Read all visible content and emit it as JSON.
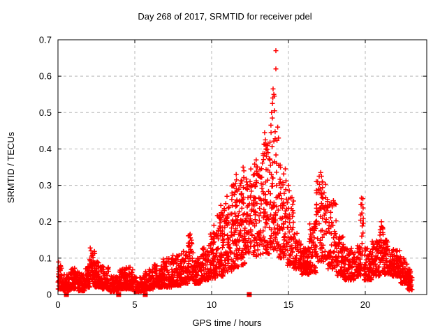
{
  "chart_data": {
    "type": "scatter",
    "title": "Day 268 of 2017, SRMTID for receiver pdel",
    "xlabel": "GPS time / hours",
    "ylabel": "SRMTID / TECUs",
    "xlim": [
      0,
      24
    ],
    "ylim": [
      0,
      0.7
    ],
    "x_ticks": [
      0,
      5,
      10,
      15,
      20
    ],
    "x_tick_labels": [
      "0",
      "5",
      "10",
      "15",
      "20"
    ],
    "y_ticks": [
      0,
      0.1,
      0.2,
      0.3,
      0.4,
      0.5,
      0.6,
      0.7
    ],
    "y_tick_labels": [
      "0",
      "0.1",
      "0.2",
      "0.3",
      "0.4",
      "0.5",
      "0.6",
      "0.7"
    ],
    "grid": true,
    "grid_style": "dashed",
    "grid_color": "#b5b5b5",
    "legend": "none",
    "marker_color": "#ff0000",
    "background_color": "#ffffff",
    "border_color": "#000000",
    "series": [
      {
        "name": "SRMTID",
        "marker": "plus",
        "color": "#ff0000",
        "envelope_bins": [
          [
            0.0,
            0.3,
            40,
            0.015,
            0.09,
            1.8
          ],
          [
            0.3,
            0.8,
            65,
            0.01,
            0.055,
            1.8
          ],
          [
            0.8,
            1.3,
            70,
            0.015,
            0.075,
            1.8
          ],
          [
            1.3,
            1.8,
            70,
            0.01,
            0.06,
            1.8
          ],
          [
            1.8,
            2.05,
            35,
            0.02,
            0.08,
            1.8
          ],
          [
            2.05,
            2.4,
            50,
            0.03,
            0.125,
            1.2
          ],
          [
            2.4,
            2.8,
            55,
            0.02,
            0.09,
            1.8
          ],
          [
            2.8,
            3.3,
            70,
            0.015,
            0.08,
            1.8
          ],
          [
            3.3,
            3.9,
            75,
            0.008,
            0.05,
            1.8
          ],
          [
            3.9,
            4.4,
            65,
            0.015,
            0.07,
            1.8
          ],
          [
            4.4,
            4.9,
            65,
            0.015,
            0.075,
            1.8
          ],
          [
            4.9,
            5.65,
            90,
            0.008,
            0.05,
            1.8
          ],
          [
            5.65,
            6.2,
            70,
            0.015,
            0.07,
            1.8
          ],
          [
            6.2,
            6.8,
            75,
            0.02,
            0.085,
            1.8
          ],
          [
            6.8,
            7.4,
            75,
            0.02,
            0.1,
            1.8
          ],
          [
            7.4,
            8.0,
            80,
            0.025,
            0.11,
            1.8
          ],
          [
            8.0,
            8.45,
            60,
            0.03,
            0.12,
            1.8
          ],
          [
            8.45,
            8.8,
            45,
            0.04,
            0.165,
            1.4
          ],
          [
            8.8,
            9.3,
            65,
            0.03,
            0.1,
            1.8
          ],
          [
            9.3,
            9.8,
            70,
            0.04,
            0.13,
            1.8
          ],
          [
            9.8,
            10.3,
            70,
            0.045,
            0.17,
            1.5
          ],
          [
            10.3,
            10.8,
            70,
            0.05,
            0.23,
            1.6
          ],
          [
            10.8,
            11.3,
            70,
            0.06,
            0.26,
            1.5
          ],
          [
            11.3,
            11.8,
            75,
            0.07,
            0.31,
            1.4
          ],
          [
            11.8,
            12.3,
            75,
            0.08,
            0.33,
            1.4
          ],
          [
            12.3,
            12.75,
            55,
            0.11,
            0.33,
            1.2
          ],
          [
            12.75,
            13.3,
            70,
            0.1,
            0.36,
            1.3
          ],
          [
            13.3,
            13.8,
            70,
            0.1,
            0.42,
            1.4
          ],
          [
            13.8,
            14.35,
            70,
            0.12,
            0.47,
            1.5
          ],
          [
            14.35,
            14.85,
            65,
            0.1,
            0.36,
            1.4
          ],
          [
            14.85,
            15.35,
            65,
            0.08,
            0.28,
            1.5
          ],
          [
            15.35,
            15.85,
            65,
            0.07,
            0.17,
            1.8
          ],
          [
            15.85,
            16.35,
            70,
            0.055,
            0.13,
            1.3
          ],
          [
            16.35,
            16.8,
            60,
            0.06,
            0.2,
            1.5
          ],
          [
            16.8,
            17.55,
            80,
            0.09,
            0.315,
            1.1
          ],
          [
            17.55,
            18.1,
            65,
            0.07,
            0.26,
            1.7
          ],
          [
            18.1,
            18.6,
            65,
            0.05,
            0.16,
            1.6
          ],
          [
            18.6,
            19.35,
            85,
            0.04,
            0.13,
            1.6
          ],
          [
            19.35,
            19.7,
            45,
            0.05,
            0.14,
            1.6
          ],
          [
            19.7,
            19.9,
            18,
            0.07,
            0.265,
            0.9
          ],
          [
            19.9,
            20.45,
            70,
            0.04,
            0.13,
            1.6
          ],
          [
            20.45,
            20.95,
            65,
            0.05,
            0.15,
            1.6
          ],
          [
            20.95,
            21.2,
            30,
            0.06,
            0.2,
            1.2
          ],
          [
            21.2,
            21.7,
            65,
            0.055,
            0.15,
            1.6
          ],
          [
            21.7,
            22.3,
            75,
            0.05,
            0.125,
            1.6
          ],
          [
            22.3,
            22.75,
            60,
            0.03,
            0.1,
            1.5
          ],
          [
            22.75,
            23.05,
            45,
            0.012,
            0.075,
            1.3
          ]
        ],
        "peak_points": [
          [
            2.1,
            0.128
          ],
          [
            2.15,
            0.12
          ],
          [
            8.6,
            0.166
          ],
          [
            10.15,
            0.19
          ],
          [
            10.6,
            0.245
          ],
          [
            10.62,
            0.225
          ],
          [
            11.0,
            0.27
          ],
          [
            11.55,
            0.305
          ],
          [
            11.6,
            0.33
          ],
          [
            11.62,
            0.315
          ],
          [
            12.05,
            0.35
          ],
          [
            12.1,
            0.34
          ],
          [
            12.55,
            0.345
          ],
          [
            12.9,
            0.37
          ],
          [
            13.45,
            0.445
          ],
          [
            13.5,
            0.425
          ],
          [
            13.55,
            0.4
          ],
          [
            13.9,
            0.5
          ],
          [
            13.95,
            0.485
          ],
          [
            13.96,
            0.525
          ],
          [
            13.98,
            0.54
          ],
          [
            14.0,
            0.565
          ],
          [
            14.05,
            0.55
          ],
          [
            14.08,
            0.545
          ],
          [
            14.1,
            0.505
          ],
          [
            14.18,
            0.67
          ],
          [
            14.18,
            0.62
          ],
          [
            14.3,
            0.46
          ],
          [
            14.35,
            0.43
          ],
          [
            15.0,
            0.3
          ],
          [
            15.05,
            0.285
          ],
          [
            16.9,
            0.31
          ],
          [
            17.0,
            0.325
          ],
          [
            17.1,
            0.335
          ],
          [
            17.15,
            0.325
          ],
          [
            17.2,
            0.31
          ],
          [
            19.75,
            0.265
          ],
          [
            19.78,
            0.248
          ],
          [
            21.05,
            0.2
          ],
          [
            21.1,
            0.185
          ]
        ]
      },
      {
        "name": "axis squares",
        "marker": "filled-square",
        "color": "#ff0000",
        "points": [
          [
            0.55,
            0
          ],
          [
            3.95,
            0
          ],
          [
            5.68,
            0
          ],
          [
            12.45,
            0
          ]
        ]
      }
    ]
  }
}
